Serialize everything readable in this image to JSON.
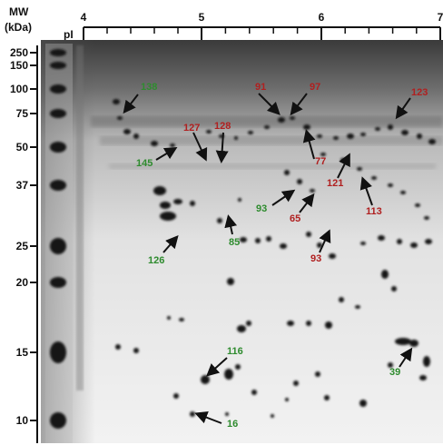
{
  "header": {
    "mw_title": "MW",
    "mw_unit": "(kDa)",
    "pi_title": "pI"
  },
  "mw_ticks": [
    "250",
    "150",
    "100",
    "75",
    "50",
    "37",
    "25",
    "20",
    "15",
    "10"
  ],
  "pi_ticks": [
    "4",
    "5",
    "6",
    "7"
  ],
  "spot_labels": [
    {
      "text": "138",
      "color": "green"
    },
    {
      "text": "91",
      "color": "red"
    },
    {
      "text": "97",
      "color": "red"
    },
    {
      "text": "123",
      "color": "red"
    },
    {
      "text": "127",
      "color": "red"
    },
    {
      "text": "128",
      "color": "red"
    },
    {
      "text": "145",
      "color": "green"
    },
    {
      "text": "77",
      "color": "red"
    },
    {
      "text": "121",
      "color": "red"
    },
    {
      "text": "113",
      "color": "red"
    },
    {
      "text": "93",
      "color": "green"
    },
    {
      "text": "65",
      "color": "red"
    },
    {
      "text": "85",
      "color": "green"
    },
    {
      "text": "126",
      "color": "green"
    },
    {
      "text": "93",
      "color": "red"
    },
    {
      "text": "116",
      "color": "green"
    },
    {
      "text": "39",
      "color": "green"
    },
    {
      "text": "16",
      "color": "green"
    }
  ],
  "colors": {
    "green_label": "#2e8b2e",
    "red_label": "#b02020",
    "gel_background": "#e9e9e9",
    "spot": "#141414"
  }
}
